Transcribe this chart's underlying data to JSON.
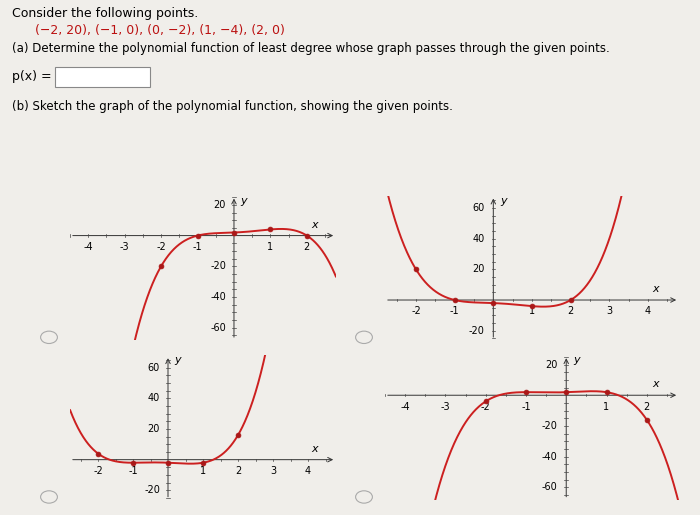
{
  "bg_color": "#f0eeea",
  "curve_color": "#cc2020",
  "point_color": "#aa1818",
  "text_color": "#111111",
  "panel_configs": [
    {
      "poly": [
        -1,
        1,
        1,
        1,
        2
      ],
      "xlim": [
        -4.5,
        2.8
      ],
      "ylim": [
        -68,
        26
      ],
      "xticks": [
        -4,
        -3,
        -2,
        -1,
        1,
        2
      ],
      "yticks": [
        -60,
        -40,
        -20,
        20
      ]
    },
    {
      "poly": [
        1,
        -1,
        -1,
        -1,
        -2
      ],
      "xlim": [
        -2.8,
        4.8
      ],
      "ylim": [
        -26,
        68
      ],
      "xticks": [
        -2,
        -1,
        1,
        2,
        3,
        4
      ],
      "yticks": [
        -20,
        20,
        40,
        60
      ]
    },
    {
      "poly": [
        1,
        1,
        -1,
        -1,
        -2
      ],
      "xlim": [
        -2.8,
        4.8
      ],
      "ylim": [
        -26,
        68
      ],
      "xticks": [
        -2,
        -1,
        1,
        2,
        3,
        4
      ],
      "yticks": [
        -20,
        20,
        40,
        60
      ]
    },
    {
      "poly": [
        -1,
        -1,
        1,
        1,
        2
      ],
      "xlim": [
        -4.5,
        2.8
      ],
      "ylim": [
        -68,
        26
      ],
      "xticks": [
        -4,
        -3,
        -2,
        -1,
        1,
        2
      ],
      "yticks": [
        -60,
        -40,
        -20,
        20
      ]
    }
  ],
  "points_x": [
    -2,
    -1,
    0,
    1,
    2
  ],
  "points_y": [
    20,
    0,
    -2,
    -4,
    0
  ]
}
